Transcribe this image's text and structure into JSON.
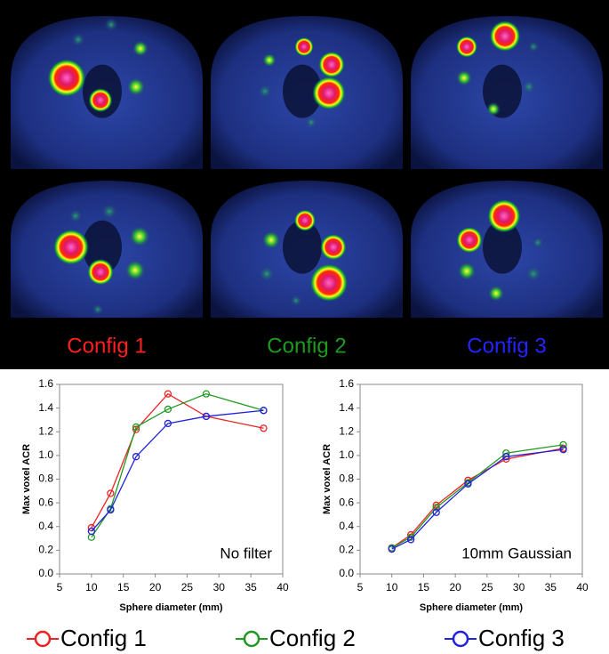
{
  "image_labels": [
    {
      "text": "Config 1",
      "color": "#ff2020"
    },
    {
      "text": "Config 2",
      "color": "#1e9a1e"
    },
    {
      "text": "Config 3",
      "color": "#2424ff"
    }
  ],
  "chart_data": [
    {
      "type": "line",
      "annotation": "No filter",
      "x_label": "Sphere diameter (mm)",
      "y_label": "Max voxel ACR",
      "x": [
        10,
        13,
        17,
        22,
        28,
        37
      ],
      "series": [
        {
          "name": "Config 1",
          "color": "#ee2222",
          "values": [
            0.39,
            0.68,
            1.22,
            1.52,
            1.33,
            1.23
          ]
        },
        {
          "name": "Config 2",
          "color": "#229922",
          "values": [
            0.31,
            0.55,
            1.24,
            1.39,
            1.52,
            1.38
          ]
        },
        {
          "name": "Config 3",
          "color": "#2222dd",
          "values": [
            0.36,
            0.54,
            0.99,
            1.27,
            1.33,
            1.38
          ]
        }
      ],
      "xlim": [
        5,
        40
      ],
      "xticks": [
        5,
        10,
        15,
        20,
        25,
        30,
        35,
        40
      ],
      "ylim": [
        0,
        1.6
      ],
      "yticks": [
        {
          "value": 0,
          "label": "0.0"
        },
        0.2,
        0.4,
        0.6,
        0.8,
        {
          "value": 1,
          "label": "1.0"
        },
        1.2,
        1.4,
        1.6
      ]
    },
    {
      "type": "line",
      "annotation": "10mm Gaussian",
      "x_label": "Sphere diameter (mm)",
      "y_label": "Max voxel ACR",
      "x": [
        10,
        13,
        17,
        22,
        28,
        37
      ],
      "series": [
        {
          "name": "Config 1",
          "color": "#ee2222",
          "values": [
            0.22,
            0.33,
            0.58,
            0.79,
            0.97,
            1.06
          ]
        },
        {
          "name": "Config 2",
          "color": "#229922",
          "values": [
            0.22,
            0.31,
            0.56,
            0.77,
            1.02,
            1.09
          ]
        },
        {
          "name": "Config 3",
          "color": "#2222dd",
          "values": [
            0.21,
            0.29,
            0.52,
            0.76,
            0.99,
            1.05
          ]
        }
      ],
      "xlim": [
        5,
        40
      ],
      "xticks": [
        5,
        10,
        15,
        20,
        25,
        30,
        35,
        40
      ],
      "ylim": [
        0,
        1.6
      ],
      "yticks": [
        {
          "value": 0,
          "label": "0.0"
        },
        0.2,
        0.4,
        0.6,
        0.8,
        {
          "value": 1,
          "label": "1.0"
        },
        1.2,
        1.4,
        1.6
      ]
    }
  ]
}
